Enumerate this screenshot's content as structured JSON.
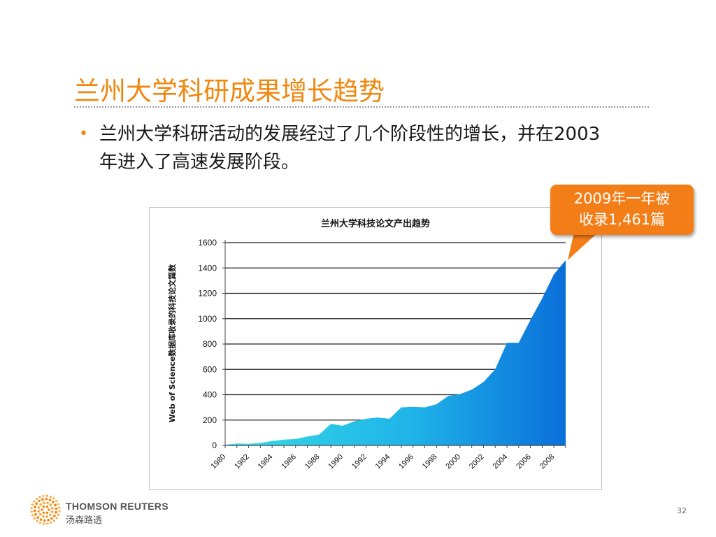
{
  "slide": {
    "title": "兰州大学科研成果增长趋势",
    "bullet": "兰州大学科研活动的发展经过了几个阶段性的增长，并在2003年进入了高速发展阶段。",
    "callout": {
      "line1": "2009年一年被",
      "line2": "收录1,461篇"
    },
    "brand_en": "THOMSON REUTERS",
    "brand_cn": "汤森路透",
    "page_number": "32"
  },
  "colors": {
    "title": "#f0870f",
    "callout": "#f37e17",
    "area_light": "#2fd9e6",
    "area_dark": "#0a6fd9"
  },
  "chart_data": {
    "type": "area",
    "title": "兰州大学科技论文产出趋势",
    "ylabel": "Web of Science数据库收录的科技论文篇数",
    "xlabel": "",
    "ylim": [
      0,
      1600
    ],
    "yticks": [
      0,
      200,
      400,
      600,
      800,
      1000,
      1200,
      1400,
      1600
    ],
    "xtick_labels": [
      "1980",
      "1982",
      "1984",
      "1986",
      "1988",
      "1990",
      "1992",
      "1994",
      "1996",
      "1998",
      "2000",
      "2002",
      "2004",
      "2006",
      "2008"
    ],
    "grid": true,
    "x": [
      1980,
      1981,
      1982,
      1983,
      1984,
      1985,
      1986,
      1987,
      1988,
      1989,
      1990,
      1991,
      1992,
      1993,
      1994,
      1995,
      1996,
      1997,
      1998,
      1999,
      2000,
      2001,
      2002,
      2003,
      2004,
      2005,
      2006,
      2007,
      2008,
      2009
    ],
    "values": [
      5,
      15,
      12,
      20,
      35,
      45,
      50,
      70,
      85,
      170,
      155,
      190,
      210,
      220,
      210,
      300,
      305,
      300,
      325,
      390,
      405,
      440,
      500,
      600,
      810,
      810,
      990,
      1160,
      1350,
      1461
    ]
  }
}
